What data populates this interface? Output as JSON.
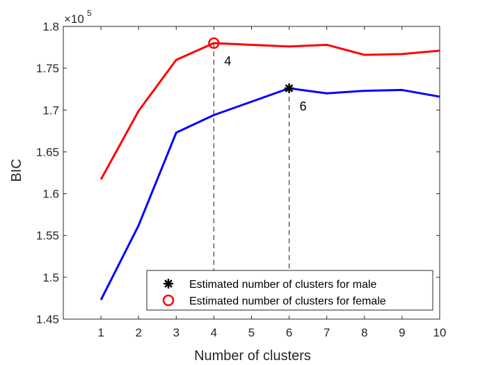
{
  "chart_data": {
    "type": "line",
    "xlabel": "Number of clusters",
    "ylabel": "BIC",
    "exponent_base": "×10",
    "exponent_power": "5",
    "xlim": [
      0,
      10
    ],
    "ylim": [
      1.45,
      1.8
    ],
    "xticks": [
      1,
      2,
      3,
      4,
      5,
      6,
      7,
      8,
      9,
      10
    ],
    "yticks": [
      1.45,
      1.5,
      1.55,
      1.6,
      1.65,
      1.7,
      1.75,
      1.8
    ],
    "ytick_labels": [
      "1.45",
      "1.5",
      "1.55",
      "1.6",
      "1.65",
      "1.7",
      "1.75",
      "1.8"
    ],
    "grid": false,
    "legend_position": "bottom-right",
    "series": [
      {
        "id": "female",
        "color": "#ff0000",
        "x": [
          1,
          2,
          3,
          4,
          5,
          6,
          7,
          8,
          9,
          10
        ],
        "y": [
          1.617,
          1.699,
          1.76,
          1.78,
          1.778,
          1.776,
          1.778,
          1.766,
          1.767,
          1.771
        ]
      },
      {
        "id": "male",
        "color": "#0000ff",
        "x": [
          1,
          2,
          3,
          4,
          5,
          6,
          7,
          8,
          9,
          10
        ],
        "y": [
          1.473,
          1.562,
          1.673,
          1.694,
          1.71,
          1.726,
          1.72,
          1.723,
          1.724,
          1.716
        ]
      }
    ],
    "markers": [
      {
        "id": "male-estimate",
        "symbol": "asterisk",
        "x": 6,
        "y": 1.726,
        "label": "6",
        "color": "#000000"
      },
      {
        "id": "female-estimate",
        "symbol": "circle",
        "x": 4,
        "y": 1.78,
        "label": "4",
        "color": "#ff0000"
      }
    ],
    "dropline_bottom": 1.465,
    "legend": [
      {
        "symbol": "asterisk",
        "color": "#000000",
        "label": "Estimated number of clusters for male"
      },
      {
        "symbol": "circle",
        "color": "#ff0000",
        "label": "Estimated number of clusters for female"
      }
    ]
  }
}
